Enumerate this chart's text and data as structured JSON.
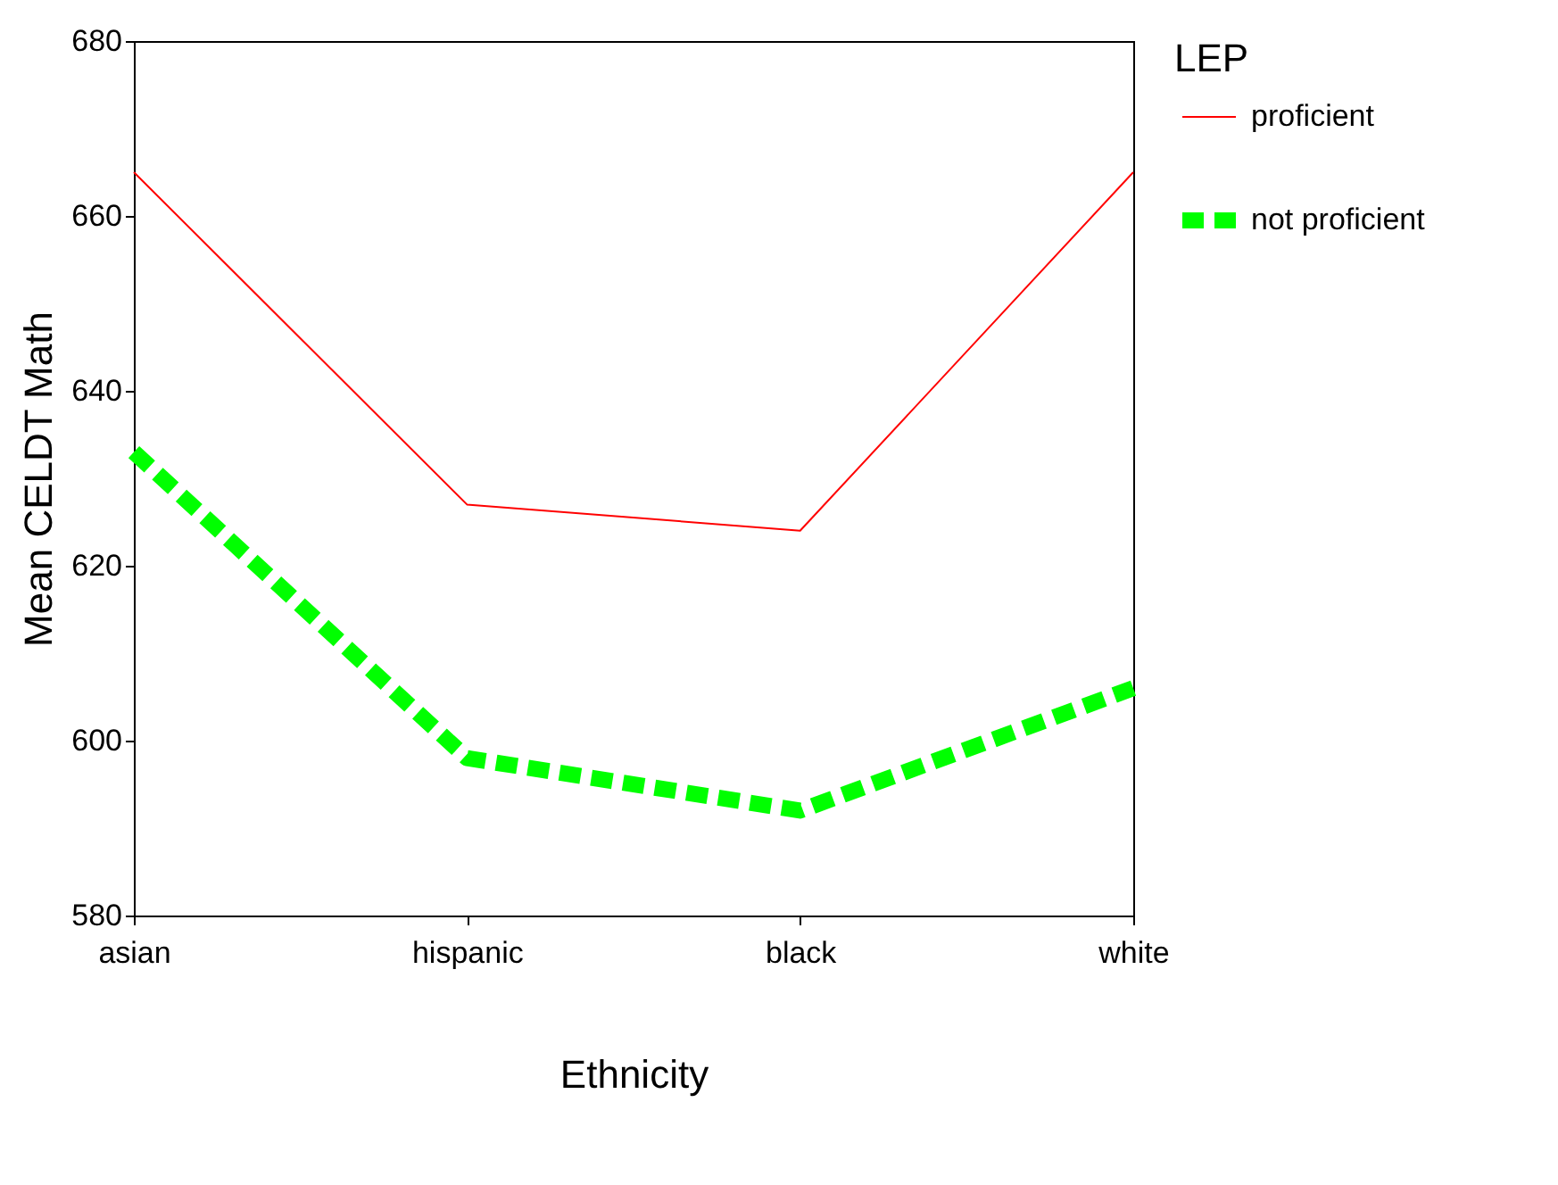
{
  "chart_data": {
    "type": "line",
    "xlabel": "Ethnicity",
    "ylabel": "Mean CELDT Math",
    "legend_title": "LEP",
    "legend": "right",
    "categories": [
      "asian",
      "hispanic",
      "black",
      "white"
    ],
    "ylim": [
      580,
      680
    ],
    "yticks": [
      580,
      600,
      620,
      640,
      660,
      680
    ],
    "grid": false,
    "series": [
      {
        "name": "proficient",
        "color": "#ff0000",
        "line_style": "solid",
        "values": [
          665,
          627,
          624,
          665
        ]
      },
      {
        "name": "not proficient",
        "color": "#00ff00",
        "line_style": "dashed",
        "values": [
          633,
          598,
          592,
          606
        ]
      }
    ]
  }
}
